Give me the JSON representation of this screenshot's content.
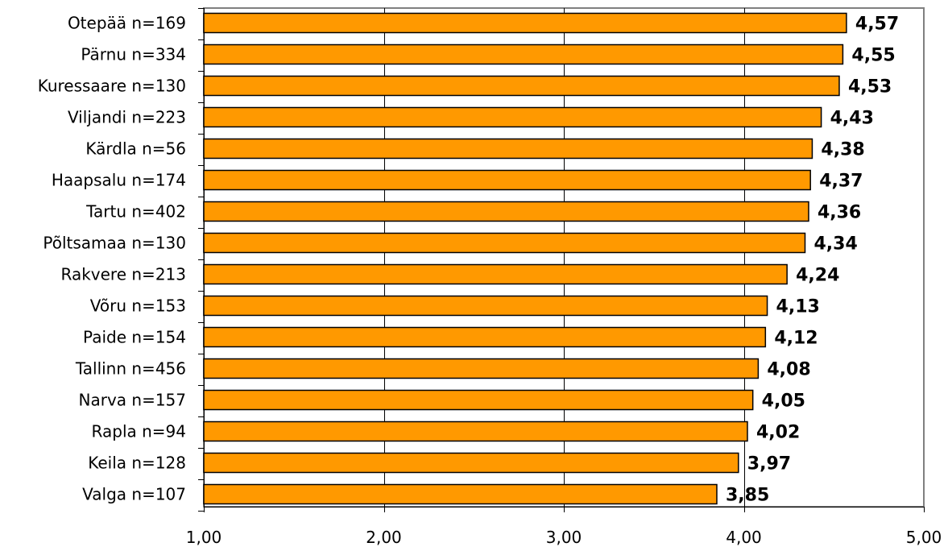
{
  "chart_data": {
    "type": "bar",
    "orientation": "horizontal",
    "categories": [
      "Otepää n=169",
      "Pärnu n=334",
      "Kuressaare n=130",
      "Viljandi n=223",
      "Kärdla n=56",
      "Haapsalu n=174",
      "Tartu n=402",
      "Põltsamaa n=130",
      "Rakvere n=213",
      "Võru n=153",
      "Paide n=154",
      "Tallinn n=456",
      "Narva n=157",
      "Rapla n=94",
      "Keila n=128",
      "Valga n=107"
    ],
    "values": [
      4.57,
      4.55,
      4.53,
      4.43,
      4.38,
      4.37,
      4.36,
      4.34,
      4.24,
      4.13,
      4.12,
      4.08,
      4.05,
      4.02,
      3.97,
      3.85
    ],
    "value_labels": [
      "4,57",
      "4,55",
      "4,53",
      "4,43",
      "4,38",
      "4,37",
      "4,36",
      "4,34",
      "4,24",
      "4,13",
      "4,12",
      "4,08",
      "4,05",
      "4,02",
      "3,97",
      "3,85"
    ],
    "xlim": [
      1,
      5
    ],
    "xticks": [
      1,
      2,
      3,
      4,
      5
    ],
    "xtick_labels": [
      "1,00",
      "2,00",
      "3,00",
      "4,00",
      "5,00"
    ],
    "title": "",
    "xlabel": "",
    "ylabel": "",
    "grid": true,
    "legend": "none",
    "colors": {
      "bar_fill": "#ff9900",
      "bar_stroke": "#000000",
      "gridline": "#000000",
      "plot_border": "#808080",
      "axis": "#000000"
    }
  }
}
